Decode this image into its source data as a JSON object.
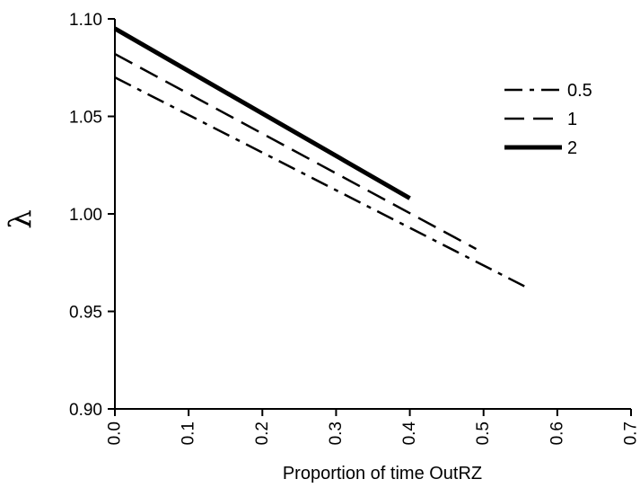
{
  "chart_data": {
    "type": "line",
    "title": "",
    "xlabel": "Proportion of time OutRZ",
    "ylabel": "λ",
    "xlim": [
      0.0,
      0.7
    ],
    "ylim": [
      0.9,
      1.1
    ],
    "xticks": [
      "0.0",
      "0.1",
      "0.2",
      "0.3",
      "0.4",
      "0.5",
      "0.6",
      "0.7"
    ],
    "yticks": [
      "0.90",
      "0.95",
      "1.00",
      "1.05",
      "1.10"
    ],
    "grid": false,
    "legend_position": "top-right",
    "series": [
      {
        "name": "0.5",
        "style": "dash-dot",
        "x": [
          0.0,
          0.56
        ],
        "y": [
          1.07,
          0.962
        ]
      },
      {
        "name": "1",
        "style": "dashed",
        "x": [
          0.0,
          0.49
        ],
        "y": [
          1.082,
          0.982
        ]
      },
      {
        "name": "2",
        "style": "solid-thick",
        "x": [
          0.0,
          0.4
        ],
        "y": [
          1.095,
          1.008
        ]
      }
    ]
  }
}
